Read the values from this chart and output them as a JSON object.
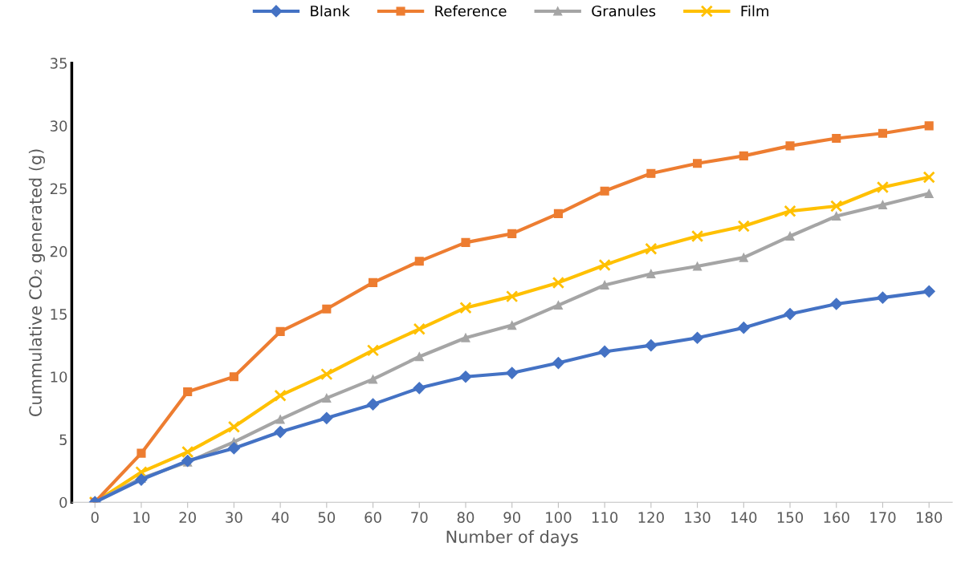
{
  "chart_data": {
    "type": "line",
    "xlabel": "Number of days",
    "ylabel": "Cummulative CO₂ generated (g)",
    "categories": [
      "0",
      "10",
      "20",
      "30",
      "40",
      "50",
      "60",
      "70",
      "80",
      "90",
      "100",
      "110",
      "120",
      "130",
      "140",
      "150",
      "160",
      "170",
      "180"
    ],
    "series": [
      {
        "name": "Blank",
        "color": "#4472c4",
        "marker": "diamond",
        "values": [
          0,
          1.8,
          3.3,
          4.3,
          5.6,
          6.7,
          7.8,
          9.1,
          10.0,
          10.3,
          11.1,
          12.0,
          12.5,
          13.1,
          13.9,
          15.0,
          15.8,
          16.3,
          16.8
        ]
      },
      {
        "name": "Reference",
        "color": "#ed7d31",
        "marker": "square",
        "values": [
          0,
          3.9,
          8.8,
          10.0,
          13.6,
          15.4,
          17.5,
          19.2,
          20.7,
          21.4,
          23.0,
          24.8,
          26.2,
          27.0,
          27.6,
          28.4,
          29.0,
          29.4,
          30.0
        ]
      },
      {
        "name": "Granules",
        "color": "#a5a5a5",
        "marker": "triangle",
        "values": [
          0,
          1.9,
          3.2,
          4.8,
          6.6,
          8.3,
          9.8,
          11.6,
          13.1,
          14.1,
          15.7,
          17.3,
          18.2,
          18.8,
          19.5,
          21.2,
          22.8,
          23.7,
          24.6
        ]
      },
      {
        "name": "Film",
        "color": "#ffc000",
        "marker": "cross",
        "values": [
          0,
          2.4,
          4.0,
          6.0,
          8.5,
          10.2,
          12.1,
          13.8,
          15.5,
          16.4,
          17.5,
          18.9,
          20.2,
          21.2,
          22.0,
          23.2,
          23.6,
          25.1,
          25.9
        ]
      }
    ],
    "ylim": [
      0,
      35
    ],
    "yticks": [
      0,
      5,
      10,
      15,
      20,
      25,
      30,
      35
    ],
    "grid": false,
    "legend": "top",
    "line_style": "solid"
  }
}
